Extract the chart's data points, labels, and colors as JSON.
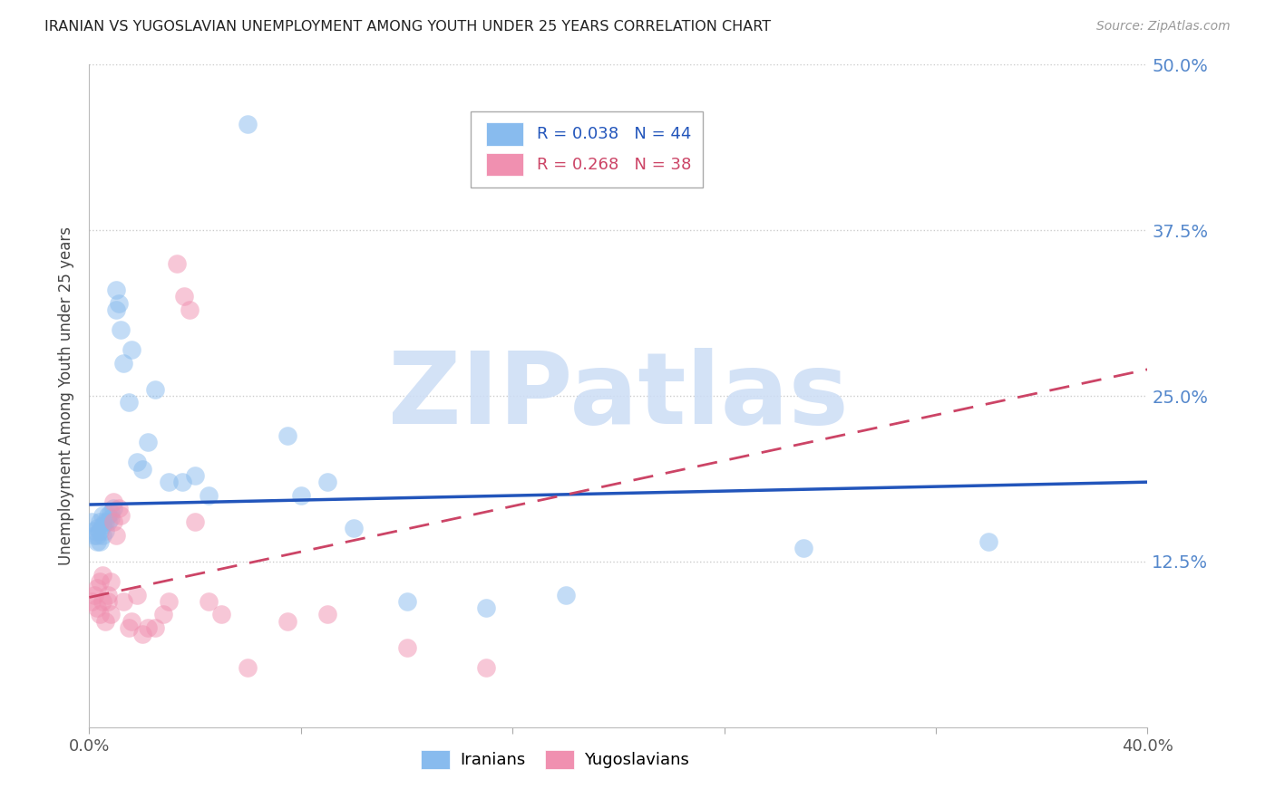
{
  "title": "IRANIAN VS YUGOSLAVIAN UNEMPLOYMENT AMONG YOUTH UNDER 25 YEARS CORRELATION CHART",
  "source": "Source: ZipAtlas.com",
  "ylabel": "Unemployment Among Youth under 25 years",
  "iranians_R": "0.038",
  "iranians_N": "44",
  "yugoslavians_R": "0.268",
  "yugoslavians_N": "38",
  "blue_scatter_color": "#88bbee",
  "pink_scatter_color": "#f090b0",
  "blue_line_color": "#2255bb",
  "pink_line_color": "#cc4466",
  "watermark": "ZIPatlas",
  "watermark_color": "#ccddf5",
  "background_color": "#ffffff",
  "xlim": [
    0.0,
    0.4
  ],
  "ylim": [
    0.0,
    0.5
  ],
  "ytick_labels_right": [
    "50.0%",
    "37.5%",
    "25.0%",
    "12.5%"
  ],
  "ytick_vals": [
    0.5,
    0.375,
    0.25,
    0.125
  ],
  "xtick_labels": [
    "0.0%",
    "",
    "",
    "",
    "",
    "40.0%"
  ],
  "iranians_x": [
    0.001,
    0.002,
    0.002,
    0.003,
    0.003,
    0.003,
    0.004,
    0.004,
    0.004,
    0.005,
    0.005,
    0.005,
    0.006,
    0.006,
    0.007,
    0.007,
    0.008,
    0.008,
    0.009,
    0.01,
    0.01,
    0.011,
    0.012,
    0.013,
    0.015,
    0.016,
    0.018,
    0.02,
    0.022,
    0.025,
    0.03,
    0.035,
    0.04,
    0.045,
    0.06,
    0.075,
    0.08,
    0.09,
    0.1,
    0.12,
    0.15,
    0.18,
    0.27,
    0.34
  ],
  "iranians_y": [
    0.155,
    0.148,
    0.145,
    0.15,
    0.145,
    0.14,
    0.155,
    0.148,
    0.14,
    0.16,
    0.152,
    0.145,
    0.148,
    0.155,
    0.16,
    0.155,
    0.158,
    0.162,
    0.165,
    0.33,
    0.315,
    0.32,
    0.3,
    0.275,
    0.245,
    0.285,
    0.2,
    0.195,
    0.215,
    0.255,
    0.185,
    0.185,
    0.19,
    0.175,
    0.455,
    0.22,
    0.175,
    0.185,
    0.15,
    0.095,
    0.09,
    0.1,
    0.135,
    0.14
  ],
  "yugoslavians_x": [
    0.001,
    0.002,
    0.003,
    0.003,
    0.004,
    0.004,
    0.005,
    0.005,
    0.006,
    0.007,
    0.007,
    0.008,
    0.008,
    0.009,
    0.009,
    0.01,
    0.011,
    0.012,
    0.013,
    0.015,
    0.016,
    0.018,
    0.02,
    0.022,
    0.025,
    0.028,
    0.03,
    0.033,
    0.036,
    0.038,
    0.04,
    0.045,
    0.05,
    0.06,
    0.075,
    0.09,
    0.12,
    0.15
  ],
  "yugoslavians_y": [
    0.095,
    0.1,
    0.105,
    0.09,
    0.11,
    0.085,
    0.115,
    0.095,
    0.08,
    0.095,
    0.1,
    0.11,
    0.085,
    0.155,
    0.17,
    0.145,
    0.165,
    0.16,
    0.095,
    0.075,
    0.08,
    0.1,
    0.07,
    0.075,
    0.075,
    0.085,
    0.095,
    0.35,
    0.325,
    0.315,
    0.155,
    0.095,
    0.085,
    0.045,
    0.08,
    0.085,
    0.06,
    0.045
  ],
  "iranian_line_x": [
    0.0,
    0.4
  ],
  "iranian_line_y": [
    0.168,
    0.185
  ],
  "yugoslav_line_x": [
    0.0,
    0.4
  ],
  "yugoslav_line_y": [
    0.098,
    0.27
  ]
}
